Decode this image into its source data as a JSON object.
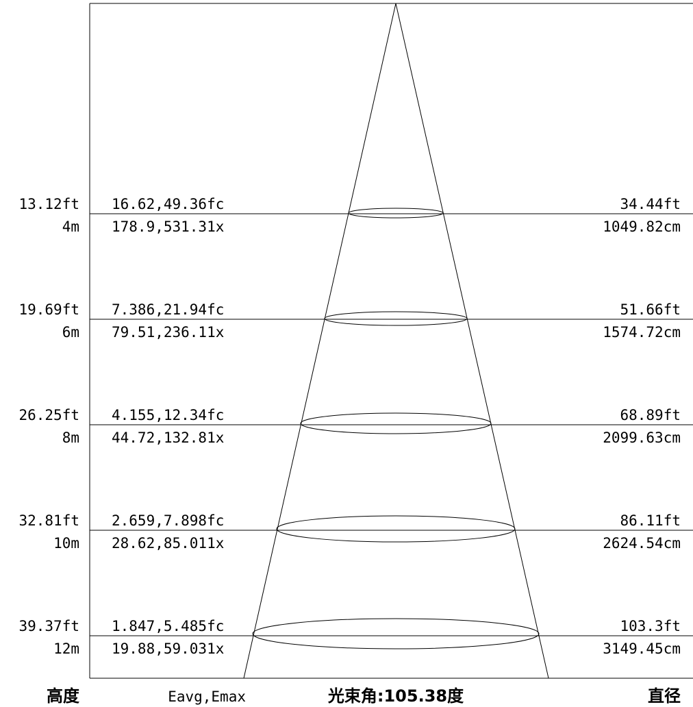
{
  "rows": [
    {
      "height_ft": "13.12ft",
      "height_m": "4m",
      "illum_fc": "16.62,49.36fc",
      "illum_lx": "178.9,531.31x",
      "diam_ft": "34.44ft",
      "diam_cm": "1049.82cm"
    },
    {
      "height_ft": "19.69ft",
      "height_m": "6m",
      "illum_fc": "7.386,21.94fc",
      "illum_lx": "79.51,236.11x",
      "diam_ft": "51.66ft",
      "diam_cm": "1574.72cm"
    },
    {
      "height_ft": "26.25ft",
      "height_m": "8m",
      "illum_fc": "4.155,12.34fc",
      "illum_lx": "44.72,132.81x",
      "diam_ft": "68.89ft",
      "diam_cm": "2099.63cm"
    },
    {
      "height_ft": "32.81ft",
      "height_m": "10m",
      "illum_fc": "2.659,7.898fc",
      "illum_lx": "28.62,85.011x",
      "diam_ft": "86.11ft",
      "diam_cm": "2624.54cm"
    },
    {
      "height_ft": "39.37ft",
      "height_m": "12m",
      "illum_fc": "1.847,5.485fc",
      "illum_lx": "19.88,59.031x",
      "diam_ft": "103.3ft",
      "diam_cm": "3149.45cm"
    }
  ],
  "footer": {
    "height_label": "高度",
    "illum_label": "Eavg,Emax",
    "beam_angle_label": "光束角:105.38度",
    "diameter_label": "直径"
  }
}
